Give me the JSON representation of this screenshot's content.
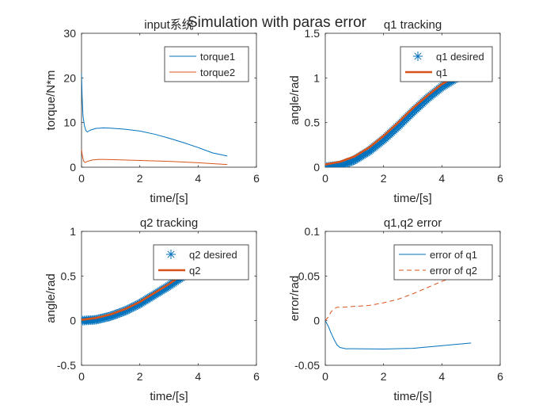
{
  "figure": {
    "suptitle": "Simulation with paras error"
  },
  "chart_data": [
    {
      "type": "line",
      "title": "input系统",
      "xlabel": "time/[s]",
      "ylabel": "torque/N*m",
      "xlim": [
        0,
        6
      ],
      "ylim": [
        0,
        30
      ],
      "xticks": [
        "0",
        "2",
        "4",
        "6"
      ],
      "yticks": [
        "0",
        "10",
        "20",
        "30"
      ],
      "legend_position": "top-right",
      "series": [
        {
          "name": "torque1",
          "color": "#0072BD",
          "style": "solid",
          "x": [
            0,
            0.02,
            0.05,
            0.1,
            0.15,
            0.2,
            0.3,
            0.5,
            0.75,
            1,
            1.5,
            2,
            2.5,
            3,
            3.5,
            4,
            4.5,
            5
          ],
          "y": [
            21,
            16,
            11.5,
            9.3,
            8.2,
            7.9,
            8.3,
            8.7,
            8.8,
            8.75,
            8.5,
            8.1,
            7.4,
            6.5,
            5.5,
            4.4,
            3.2,
            2.5
          ]
        },
        {
          "name": "torque2",
          "color": "#D95319",
          "style": "solid",
          "x": [
            0,
            0.03,
            0.07,
            0.12,
            0.2,
            0.35,
            0.6,
            1,
            2,
            3,
            4,
            5
          ],
          "y": [
            4,
            2.5,
            1.4,
            1.05,
            1.3,
            1.6,
            1.75,
            1.7,
            1.5,
            1.3,
            1.0,
            0.6
          ]
        }
      ]
    },
    {
      "type": "line",
      "title": "q1 tracking",
      "xlabel": "time/[s]",
      "ylabel": "angle/rad",
      "xlim": [
        0,
        6
      ],
      "ylim": [
        0,
        1.5
      ],
      "xticks": [
        "0",
        "2",
        "4",
        "6"
      ],
      "yticks": [
        "0",
        "0.5",
        "1",
        "1.5"
      ],
      "legend_position": "top-right",
      "series": [
        {
          "name": "q1 desired",
          "color": "#0072BD",
          "style": "star-markers",
          "x": [
            0,
            0.5,
            1,
            1.5,
            2,
            2.5,
            3,
            3.5,
            4,
            4.5,
            5
          ],
          "y": [
            0,
            0.02,
            0.08,
            0.18,
            0.31,
            0.46,
            0.62,
            0.77,
            0.9,
            1.0,
            1.05
          ]
        },
        {
          "name": "q1",
          "color": "#D95319",
          "style": "thick-solid",
          "x": [
            0,
            0.5,
            1,
            1.5,
            2,
            2.5,
            3,
            3.5,
            4,
            4.5,
            5
          ],
          "y": [
            0.03,
            0.06,
            0.12,
            0.22,
            0.35,
            0.5,
            0.66,
            0.8,
            0.93,
            1.02,
            1.07
          ]
        }
      ]
    },
    {
      "type": "line",
      "title": "q2 tracking",
      "xlabel": "time/[s]",
      "ylabel": "angle/rad",
      "xlim": [
        0,
        6
      ],
      "ylim": [
        -0.5,
        1
      ],
      "xticks": [
        "0",
        "2",
        "4",
        "6"
      ],
      "yticks": [
        "-0.5",
        "0",
        "0.5",
        "1"
      ],
      "legend_position": "top-right",
      "series": [
        {
          "name": "q2 desired",
          "color": "#0072BD",
          "style": "star-markers",
          "x": [
            0,
            0.5,
            1,
            1.5,
            2,
            2.5,
            3,
            3.5,
            4,
            4.5,
            5
          ],
          "y": [
            0,
            0.01,
            0.05,
            0.11,
            0.19,
            0.29,
            0.39,
            0.5,
            0.6,
            0.68,
            0.72
          ]
        },
        {
          "name": "q2",
          "color": "#D95319",
          "style": "thick-solid",
          "x": [
            0,
            0.5,
            1,
            1.5,
            2,
            2.5,
            3,
            3.5,
            4,
            4.5,
            5
          ],
          "y": [
            0.01,
            0.03,
            0.07,
            0.13,
            0.21,
            0.31,
            0.41,
            0.52,
            0.62,
            0.7,
            0.74
          ]
        }
      ]
    },
    {
      "type": "line",
      "title": "q1,q2 error",
      "xlabel": "time/[s]",
      "ylabel": "error/rad",
      "xlim": [
        0,
        6
      ],
      "ylim": [
        -0.05,
        0.1
      ],
      "xticks": [
        "0",
        "2",
        "4",
        "6"
      ],
      "yticks": [
        "-0.05",
        "0",
        "0.05",
        "0.1"
      ],
      "legend_position": "top-right",
      "series": [
        {
          "name": "error of q1",
          "color": "#0072BD",
          "style": "solid",
          "x": [
            0,
            0.1,
            0.2,
            0.3,
            0.4,
            0.5,
            0.7,
            1,
            2,
            3,
            4,
            5
          ],
          "y": [
            0,
            -0.006,
            -0.014,
            -0.021,
            -0.027,
            -0.03,
            -0.0315,
            -0.0315,
            -0.0318,
            -0.031,
            -0.028,
            -0.025
          ]
        },
        {
          "name": "error of q2",
          "color": "#D95319",
          "style": "dashed",
          "x": [
            0,
            0.1,
            0.2,
            0.3,
            0.4,
            0.6,
            1,
            1.5,
            2,
            2.5,
            3,
            3.5,
            4,
            4.5,
            5
          ],
          "y": [
            0,
            0.004,
            0.01,
            0.013,
            0.015,
            0.015,
            0.016,
            0.017,
            0.02,
            0.024,
            0.03,
            0.037,
            0.044,
            0.05,
            0.055
          ]
        }
      ]
    }
  ]
}
